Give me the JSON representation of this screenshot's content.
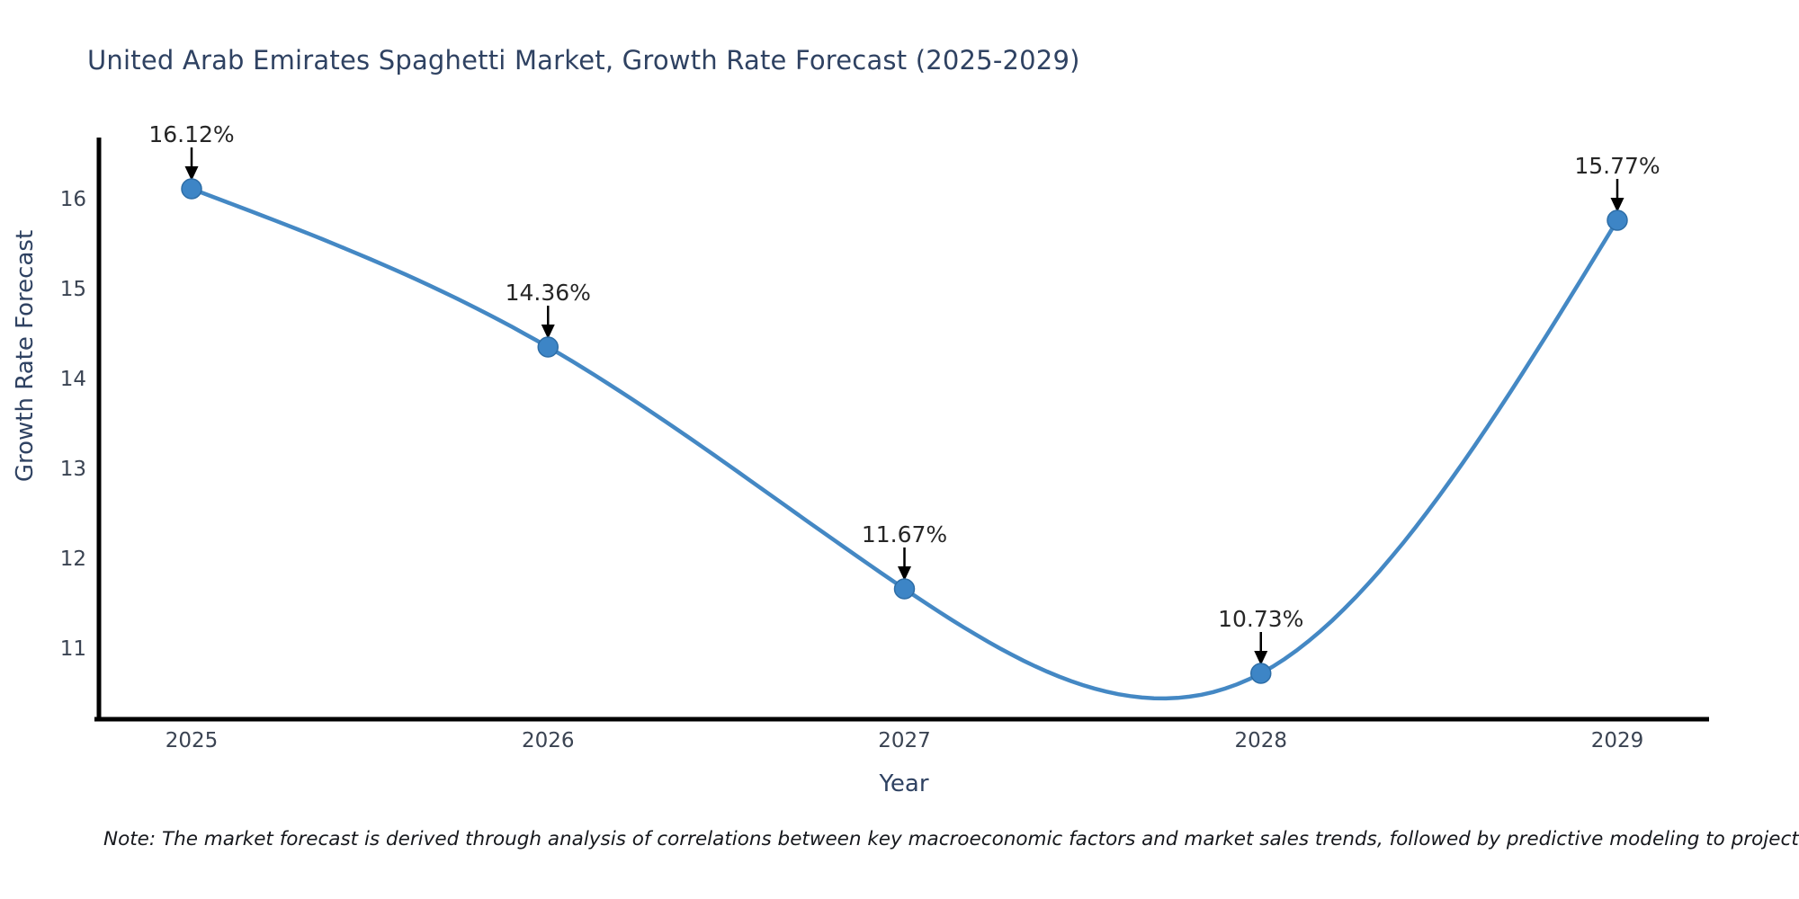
{
  "chart_data": {
    "type": "line",
    "title": "United Arab Emirates Spaghetti Market, Growth Rate Forecast (2025-2029)",
    "xlabel": "Year",
    "ylabel": "Growth Rate Forecast",
    "x": [
      2025,
      2026,
      2027,
      2028,
      2029
    ],
    "y": [
      16.12,
      14.36,
      11.67,
      10.73,
      15.77
    ],
    "point_labels": [
      "16.12%",
      "14.36%",
      "11.67%",
      "10.73%",
      "15.77%"
    ],
    "xticks": [
      "2025",
      "2026",
      "2027",
      "2028",
      "2029"
    ],
    "yticks": [
      "11",
      "12",
      "13",
      "14",
      "15",
      "16"
    ],
    "ylim": [
      10.2,
      16.7
    ],
    "grid": false,
    "legend": "none",
    "curve": "smooth-spline",
    "colors": {
      "line": "#4488c4",
      "marker_fill": "#3d85c6",
      "marker_edge": "#2d6da6",
      "axis": "#000000",
      "annotation_text": "#262626",
      "annotation_arrow": "#000000",
      "title": "#2f4262",
      "ticks": "#3a4352"
    }
  },
  "note": "Note: The market forecast is derived through analysis of correlations between key macroeconomic factors and market sales trends, followed by predictive modeling to project future sales"
}
